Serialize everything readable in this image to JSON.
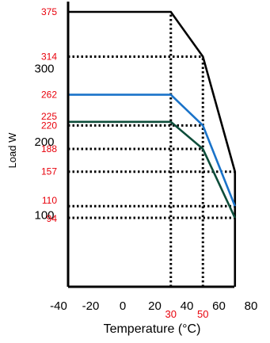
{
  "chart_data": {
    "type": "line",
    "title": "",
    "xlabel": "Temperature (°C)",
    "ylabel": "Load W",
    "xlim": [
      -40,
      80
    ],
    "ylim": [
      0,
      400
    ],
    "x_ticks": [
      {
        "label": "-40",
        "value": -40
      },
      {
        "label": "-20",
        "value": -20
      },
      {
        "label": "0",
        "value": 0
      },
      {
        "label": "20",
        "value": 20
      },
      {
        "label": "40",
        "value": 40
      },
      {
        "label": "60",
        "value": 60
      },
      {
        "label": "80",
        "value": 80
      }
    ],
    "y_ticks": [
      {
        "label": "100",
        "value": 100
      },
      {
        "label": "200",
        "value": 200
      },
      {
        "label": "300",
        "value": 300
      }
    ],
    "x_markers": [
      {
        "label": "30",
        "value": 30,
        "color": "#e8000b"
      },
      {
        "label": "50",
        "value": 50,
        "color": "#e8000b"
      }
    ],
    "y_markers": [
      {
        "label": "375",
        "value": 375,
        "color": "#e8000b"
      },
      {
        "label": "314",
        "value": 314,
        "color": "#e8000b"
      },
      {
        "label": "262",
        "value": 262,
        "color": "#e8000b"
      },
      {
        "label": "225",
        "value": 225,
        "color": "#e8000b"
      },
      {
        "label": "220",
        "value": 220,
        "color": "#e8000b"
      },
      {
        "label": "188",
        "value": 188,
        "color": "#e8000b"
      },
      {
        "label": "157",
        "value": 157,
        "color": "#e8000b"
      },
      {
        "label": "110",
        "value": 110,
        "color": "#e8000b"
      },
      {
        "label": "94",
        "value": 94,
        "color": "#e8000b"
      }
    ],
    "series": [
      {
        "color": "#000000",
        "x": [
          -40,
          30,
          50,
          70,
          70
        ],
        "y": [
          375,
          375,
          314,
          157,
          0
        ]
      },
      {
        "color": "#1a73c9",
        "x": [
          -40,
          30,
          50,
          70
        ],
        "y": [
          262,
          262,
          220,
          110
        ]
      },
      {
        "color": "#0d4d3a",
        "x": [
          -40,
          30,
          50,
          70
        ],
        "y": [
          225,
          225,
          188,
          94
        ]
      }
    ],
    "guide_lines": [
      {
        "style": "dotted",
        "from": [
          -40,
          314
        ],
        "to": [
          50,
          314
        ]
      },
      {
        "style": "dotted",
        "from": [
          -40,
          220
        ],
        "to": [
          50,
          220
        ]
      },
      {
        "style": "dotted",
        "from": [
          -40,
          188
        ],
        "to": [
          50,
          188
        ]
      },
      {
        "style": "dotted",
        "from": [
          -40,
          157
        ],
        "to": [
          70,
          157
        ]
      },
      {
        "style": "dotted",
        "from": [
          -40,
          110
        ],
        "to": [
          70,
          110
        ]
      },
      {
        "style": "dotted",
        "from": [
          -40,
          94
        ],
        "to": [
          70,
          94
        ]
      },
      {
        "style": "dotted",
        "from": [
          30,
          0
        ],
        "to": [
          30,
          375
        ]
      },
      {
        "style": "dotted",
        "from": [
          50,
          0
        ],
        "to": [
          50,
          314
        ]
      }
    ],
    "grid": false,
    "legend": "none"
  }
}
